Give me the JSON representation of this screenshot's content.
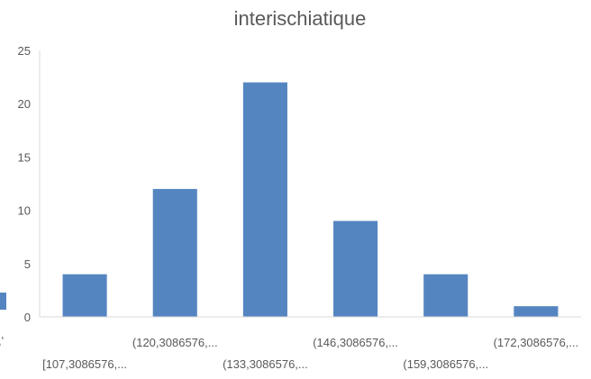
{
  "chart_data": {
    "type": "bar",
    "title": "interischiatique",
    "categories": [
      "[107,3086576,...",
      "(120,3086576,...",
      "(133,3086576,...",
      "(146,3086576,...",
      "(159,3086576,...",
      "(172,3086576,..."
    ],
    "values": [
      4,
      12,
      22,
      9,
      4,
      1
    ],
    "y_ticks": [
      "0",
      "5",
      "10",
      "15",
      "20",
      "25"
    ],
    "ylim": [
      0,
      25
    ],
    "grid": false,
    "bar_color": "#5585c1",
    "legend": "none"
  }
}
